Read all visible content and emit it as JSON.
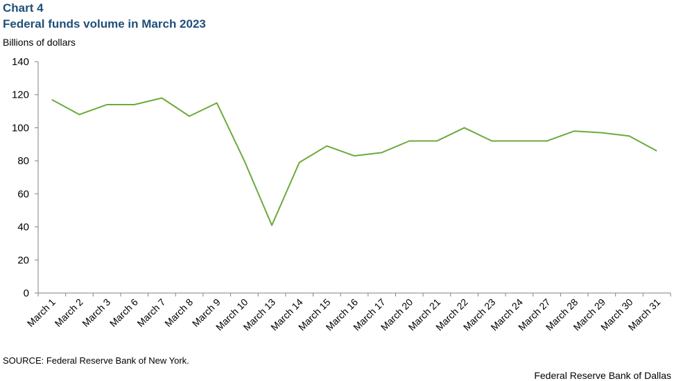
{
  "chart_data": {
    "type": "line",
    "title": "Chart 4",
    "subtitle": "Federal funds volume in March 2023",
    "y_label": "Billions of dollars",
    "source": "SOURCE:  Federal Reserve Bank of New York.",
    "credit": "Federal Reserve Bank of Dallas",
    "categories": [
      "March 1",
      "March 2",
      "March 3",
      "March 6",
      "March 7",
      "March 8",
      "March 9",
      "March 10",
      "March 13",
      "March 14",
      "March 15",
      "March 16",
      "March 17",
      "March 20",
      "March 21",
      "March 22",
      "March 23",
      "March 24",
      "March 27",
      "March 28",
      "March 29",
      "March 30",
      "March 31"
    ],
    "values": [
      117,
      108,
      114,
      114,
      118,
      107,
      115,
      80,
      41,
      79,
      89,
      83,
      85,
      92,
      92,
      100,
      92,
      92,
      92,
      98,
      97,
      95,
      86
    ],
    "color": "#6aaa3a",
    "ylim": [
      0,
      140
    ],
    "yticks": [
      0,
      20,
      40,
      60,
      80,
      100,
      120,
      140
    ],
    "grid": false
  }
}
